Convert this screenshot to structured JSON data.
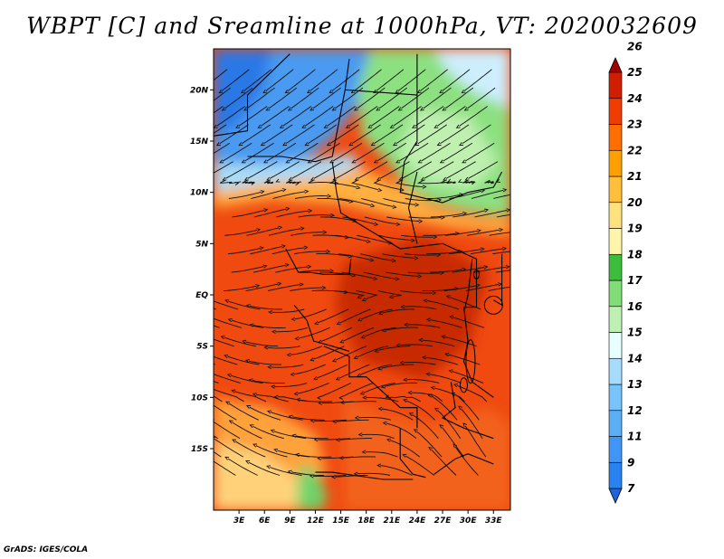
{
  "title": "WBPT [C] and Sreamline at 1000hPa, VT: 2020032609",
  "credit": "GrADS: IGES/COLA",
  "chart_data": {
    "type": "heatmap",
    "variable": "wet-bulb potential temperature with streamlines",
    "level": "1000hPa",
    "valid_time": "2020032609",
    "lon_range": [
      0,
      35
    ],
    "lat_range": [
      -21,
      24
    ],
    "x_ticks": [
      "3E",
      "6E",
      "9E",
      "12E",
      "15E",
      "18E",
      "21E",
      "24E",
      "27E",
      "30E",
      "33E"
    ],
    "x_tick_values": [
      3,
      6,
      9,
      12,
      15,
      18,
      21,
      24,
      27,
      30,
      33
    ],
    "y_ticks": [
      "20N",
      "15N",
      "10N",
      "5N",
      "EQ",
      "5S",
      "10S",
      "15S"
    ],
    "y_tick_values": [
      20,
      15,
      10,
      5,
      0,
      -5,
      -10,
      -15
    ],
    "colorbar": {
      "levels": [
        "7",
        "9",
        "11",
        "12",
        "13",
        "14",
        "15",
        "16",
        "17",
        "18",
        "19",
        "20",
        "21",
        "22",
        "23",
        "24",
        "25",
        "26"
      ],
      "colors": [
        "#1e64dc",
        "#2882f0",
        "#4196f5",
        "#5aaff5",
        "#78c3fa",
        "#a5dcff",
        "#e6ffff",
        "#bef0b4",
        "#82dc78",
        "#3cbe3c",
        "#fff5aa",
        "#ffe17d",
        "#ffbe3c",
        "#ffa000",
        "#ff6e00",
        "#f03c00",
        "#d21e00",
        "#a00000"
      ],
      "extend": "both"
    },
    "regions": [
      {
        "area": "northwest Sahel",
        "value": 13
      },
      {
        "area": "north-central Sahel",
        "value": 15
      },
      {
        "area": "northeast (Sudan)",
        "value": 17
      },
      {
        "area": "west African coast to Congo basin",
        "value": 23
      },
      {
        "area": "central Congo basin",
        "value": 24
      },
      {
        "area": "southwest Angola",
        "value": 20
      },
      {
        "area": "southwest corner",
        "value": 19
      },
      {
        "area": "south-central",
        "value": 23
      }
    ]
  }
}
